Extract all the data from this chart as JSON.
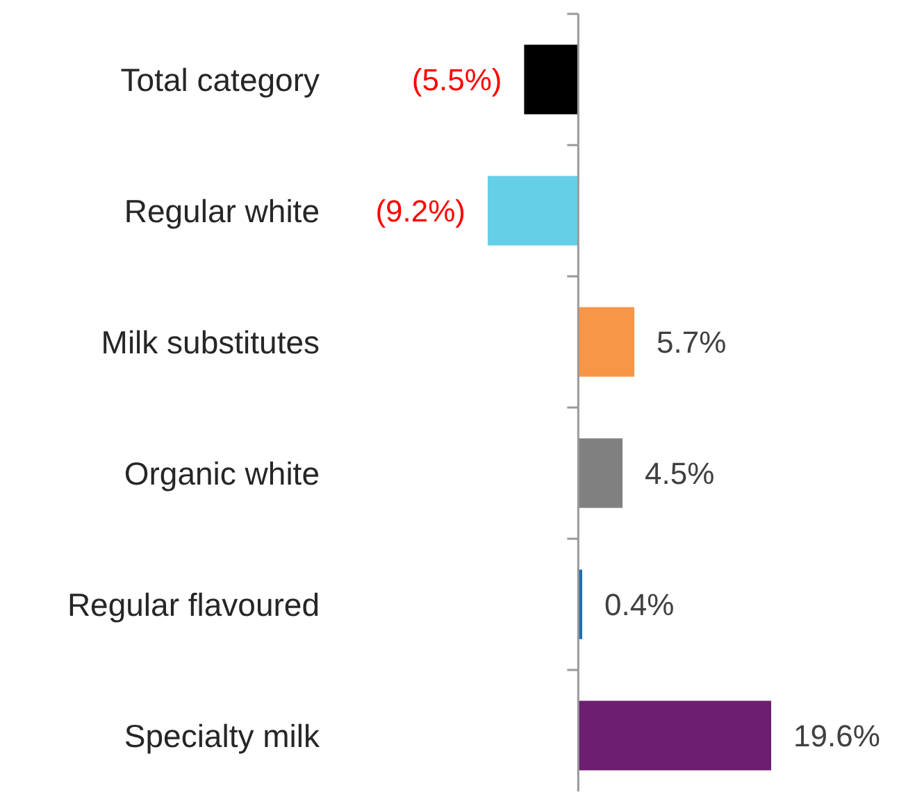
{
  "chart_data": {
    "type": "bar",
    "orientation": "horizontal",
    "categories": [
      "Total category",
      "Regular white",
      "Milk substitutes",
      "Organic white",
      "Regular flavoured",
      "Specialty milk"
    ],
    "values": [
      -5.5,
      -9.2,
      5.7,
      4.5,
      0.4,
      19.6
    ],
    "colors": [
      "#000000",
      "#66cfe8",
      "#f79646",
      "#808080",
      "#1f6fb4",
      "#6b1f6e"
    ],
    "value_labels": [
      "(5.5%)",
      "(9.2%)",
      "5.7%",
      "4.5%",
      "0.4%",
      "19.6%"
    ]
  }
}
